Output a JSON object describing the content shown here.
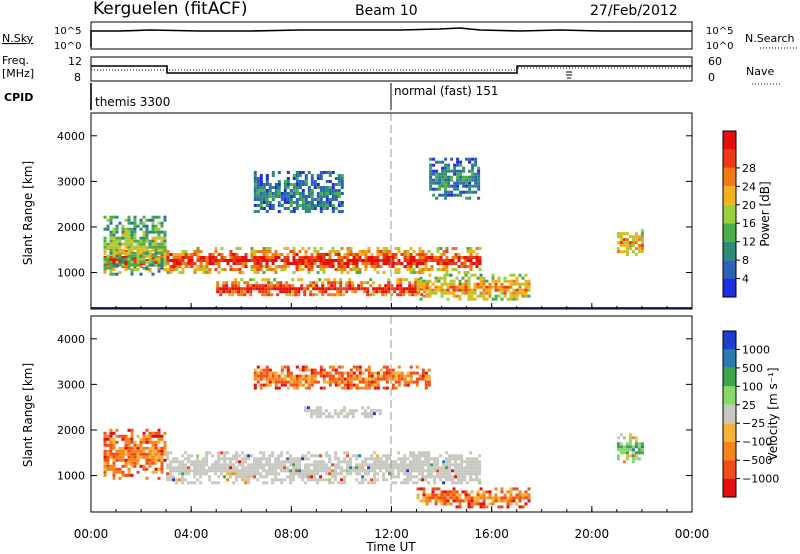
{
  "header": {
    "station": "Kerguelen (fitACF)",
    "beam": "Beam 10",
    "date": "27/Feb/2012"
  },
  "noise_panel": {
    "left_label": "N.Sky",
    "right_label": "N.Search",
    "left_ticks": [
      "10^5",
      "10^0"
    ],
    "right_ticks": [
      "10^5",
      "10^0"
    ]
  },
  "freq_panel": {
    "left_label_1": "Freq.",
    "left_label_2": "[MHz]",
    "left_ticks": [
      "12",
      "8"
    ],
    "right_ticks": [
      "60",
      "0"
    ],
    "right_label": "Nave",
    "freq_mhz": [
      {
        "from": 0,
        "to": 3.0,
        "value": 12.0
      },
      {
        "from": 3.0,
        "to": 17.0,
        "value": 10.6
      },
      {
        "from": 17.0,
        "to": 24.0,
        "value": 12.0
      }
    ]
  },
  "cpid": {
    "label": "CPID",
    "entries": [
      {
        "text": "themis 3300",
        "start_hour": 0
      },
      {
        "text": "normal (fast) 151",
        "start_hour": 12
      }
    ]
  },
  "colors": {
    "power_scale": [
      "#1f2ee0",
      "#2b63b5",
      "#2f8a78",
      "#4aae4a",
      "#9bcf3e",
      "#f3b21b",
      "#f27a12",
      "#ee3a12",
      "#e60d0d"
    ],
    "velocity_scale": [
      "#e60d0d",
      "#f04d18",
      "#f2861c",
      "#f6b23a",
      "#c8c8c0",
      "#86d86b",
      "#3ea64a",
      "#2a7cb0",
      "#1f3ed0"
    ],
    "ground_scatter": "#c8c8c0"
  },
  "chart_data": [
    {
      "type": "heatmap",
      "name": "power",
      "ylabel": "Slant Range [km]",
      "yticks": [
        "1000",
        "2000",
        "3000",
        "4000"
      ],
      "ylim": [
        200,
        4500
      ],
      "xlim": [
        0,
        24
      ],
      "colorbar_label": "Power [dB]",
      "colorbar_ticks": [
        "4",
        "8",
        "12",
        "16",
        "20",
        "24",
        "28"
      ],
      "regions": [
        {
          "t0": 0.5,
          "t1": 15.5,
          "r0": 950,
          "r1": 1500,
          "level": 8
        },
        {
          "t0": 5.0,
          "t1": 13.5,
          "r0": 400,
          "r1": 800,
          "level": 8
        },
        {
          "t0": 0.5,
          "t1": 3.0,
          "r0": 900,
          "r1": 2200,
          "level": 4
        },
        {
          "t0": 13.0,
          "t1": 17.5,
          "r0": 300,
          "r1": 900,
          "level": 6
        },
        {
          "t0": 6.5,
          "t1": 10.0,
          "r0": 2300,
          "r1": 3200,
          "level": 2
        },
        {
          "t0": 21.0,
          "t1": 22.0,
          "r0": 1300,
          "r1": 1900,
          "level": 6
        },
        {
          "t0": 13.5,
          "t1": 15.5,
          "r0": 2600,
          "r1": 3500,
          "level": 2
        }
      ]
    },
    {
      "type": "heatmap",
      "name": "velocity",
      "ylabel": "Slant Range [km]",
      "yticks": [
        "1000",
        "2000",
        "3000",
        "4000"
      ],
      "ylim": [
        200,
        4500
      ],
      "xlim": [
        0,
        24
      ],
      "colorbar_label": "Velocity [m s⁻¹]",
      "colorbar_ticks": [
        "1000",
        "500",
        "100",
        "25",
        "−25",
        "−100",
        "−500",
        "−1000"
      ],
      "regions": [
        {
          "t0": 3.0,
          "t1": 15.5,
          "r0": 800,
          "r1": 1500,
          "class": "ground"
        },
        {
          "t0": 8.5,
          "t1": 11.5,
          "r0": 2300,
          "r1": 2500,
          "class": "ground"
        },
        {
          "t0": 0.5,
          "t1": 3.0,
          "r0": 900,
          "r1": 2000,
          "level": 2
        },
        {
          "t0": 13.0,
          "t1": 17.5,
          "r0": 300,
          "r1": 700,
          "level": 2
        },
        {
          "t0": 21.0,
          "t1": 22.0,
          "r0": 1300,
          "r1": 1900,
          "level": 6
        },
        {
          "t0": 6.5,
          "t1": 13.5,
          "r0": 2900,
          "r1": 3400,
          "level": 2
        }
      ]
    }
  ],
  "xaxis": {
    "ticks": [
      "00:00",
      "04:00",
      "08:00",
      "12:00",
      "16:00",
      "20:00",
      "00:00"
    ],
    "label": "Time UT"
  }
}
